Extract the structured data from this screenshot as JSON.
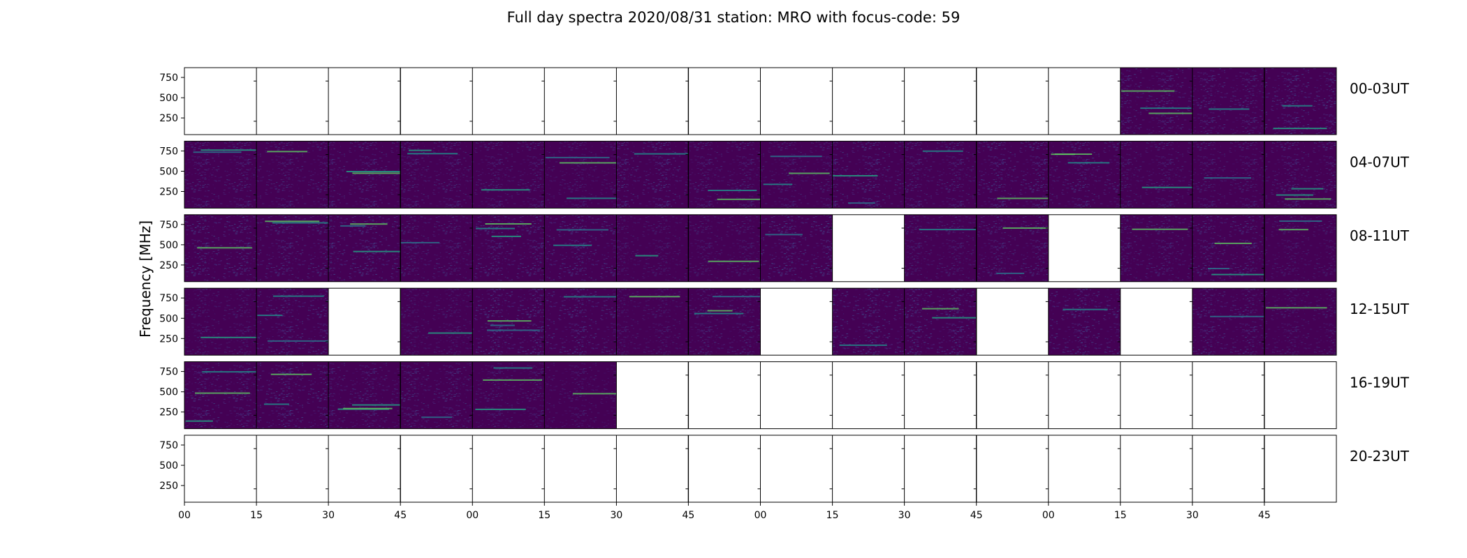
{
  "chart_data": {
    "type": "heatmap",
    "title": "Full day spectra 2020/08/31 station: MRO with focus-code: 59",
    "ylabel": "Frequency [MHz]",
    "xlabel": "",
    "y_ticks": [
      250,
      500,
      750
    ],
    "ylim": [
      45,
      870
    ],
    "x_tick_labels": [
      "00",
      "15",
      "30",
      "45",
      "00",
      "15",
      "30",
      "45",
      "00",
      "15",
      "30",
      "45",
      "00",
      "15",
      "30",
      "45"
    ],
    "minutes_per_panel": 15,
    "panels_per_row": 16,
    "colormap": [
      "#440154",
      "#3b528b",
      "#21918c",
      "#5ec962",
      "#fde725"
    ],
    "rows": [
      {
        "label": "00-03UT",
        "panels": [
          "empty",
          "empty",
          "empty",
          "empty",
          "empty",
          "empty",
          "empty",
          "empty",
          "empty",
          "empty",
          "empty",
          "empty",
          "empty",
          "data",
          "data",
          "data"
        ]
      },
      {
        "label": "04-07UT",
        "panels": [
          "data",
          "data",
          "data",
          "data",
          "data",
          "data",
          "data",
          "data",
          "data",
          "data",
          "data",
          "data",
          "data",
          "data",
          "data",
          "data"
        ]
      },
      {
        "label": "08-11UT",
        "panels": [
          "data",
          "data",
          "data",
          "data",
          "data",
          "data",
          "data",
          "data",
          "data",
          "empty",
          "data",
          "data",
          "empty",
          "data",
          "data",
          "data"
        ]
      },
      {
        "label": "12-15UT",
        "panels": [
          "data",
          "data",
          "empty",
          "data",
          "data",
          "data",
          "data",
          "data",
          "empty",
          "data",
          "data",
          "empty",
          "data",
          "empty",
          "data",
          "data"
        ]
      },
      {
        "label": "16-19UT",
        "panels": [
          "data",
          "data",
          "data",
          "data",
          "data",
          "data",
          "empty",
          "empty",
          "empty",
          "empty",
          "empty",
          "empty",
          "empty",
          "empty",
          "empty",
          "empty"
        ]
      },
      {
        "label": "20-23UT",
        "panels": [
          "empty",
          "empty",
          "empty",
          "empty",
          "empty",
          "empty",
          "empty",
          "empty",
          "empty",
          "empty",
          "empty",
          "empty",
          "empty",
          "empty",
          "empty",
          "empty"
        ]
      }
    ]
  }
}
